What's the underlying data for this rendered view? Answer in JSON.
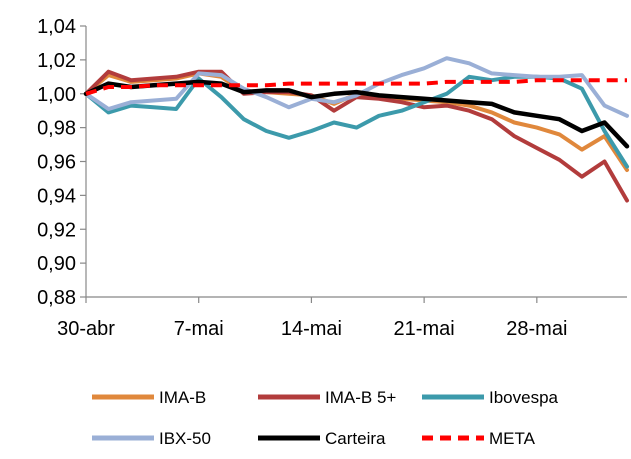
{
  "chart_data": {
    "type": "line",
    "title": "",
    "xlabel": "",
    "ylabel": "",
    "ylim": [
      0.88,
      1.04
    ],
    "yticks": [
      "0,88",
      "0,90",
      "0,92",
      "0,94",
      "0,96",
      "0,98",
      "1,00",
      "1,02",
      "1,04"
    ],
    "xticks": [
      "30-abr",
      "7-mai",
      "14-mai",
      "21-mai",
      "28-mai"
    ],
    "grid": false,
    "legend_position": "bottom",
    "series": [
      {
        "name": "IMA-B",
        "color": "#e0883c",
        "dash": "solid",
        "values": [
          1.0,
          1.011,
          1.007,
          1.008,
          1.009,
          1.012,
          1.01,
          1.001,
          1.001,
          1.0,
          0.999,
          0.994,
          1.0,
          0.998,
          0.997,
          0.996,
          0.995,
          0.993,
          0.989,
          0.983,
          0.98,
          0.976,
          0.967,
          0.975,
          0.955
        ]
      },
      {
        "name": "IMA-B 5+",
        "color": "#b23c3c",
        "dash": "solid",
        "values": [
          1.0,
          1.013,
          1.008,
          1.009,
          1.01,
          1.013,
          1.013,
          1.0,
          1.001,
          1.001,
          0.999,
          0.99,
          0.998,
          0.997,
          0.995,
          0.992,
          0.993,
          0.99,
          0.985,
          0.975,
          0.968,
          0.961,
          0.951,
          0.96,
          0.937
        ]
      },
      {
        "name": "Ibovespa",
        "color": "#3c9aab",
        "dash": "solid",
        "values": [
          1.0,
          0.989,
          0.993,
          0.992,
          0.991,
          1.009,
          0.998,
          0.985,
          0.978,
          0.974,
          0.978,
          0.983,
          0.98,
          0.987,
          0.99,
          0.995,
          1.0,
          1.01,
          1.008,
          1.01,
          1.01,
          1.009,
          1.003,
          0.978,
          0.957
        ]
      },
      {
        "name": "IBX-50",
        "color": "#9aafd6",
        "dash": "solid",
        "values": [
          1.0,
          0.991,
          0.995,
          0.996,
          0.997,
          1.012,
          1.011,
          1.003,
          0.998,
          0.992,
          0.997,
          0.995,
          0.999,
          1.006,
          1.011,
          1.015,
          1.021,
          1.018,
          1.012,
          1.011,
          1.01,
          1.01,
          1.011,
          0.993,
          0.987
        ]
      },
      {
        "name": "Carteira",
        "color": "#000000",
        "dash": "solid",
        "values": [
          1.0,
          1.006,
          1.004,
          1.005,
          1.006,
          1.007,
          1.006,
          1.001,
          1.002,
          1.002,
          0.998,
          1.0,
          1.001,
          0.999,
          0.998,
          0.997,
          0.996,
          0.995,
          0.994,
          0.989,
          0.987,
          0.985,
          0.978,
          0.983,
          0.969
        ]
      },
      {
        "name": "META",
        "color": "#ff0000",
        "dash": "dashed",
        "values": [
          1.0,
          1.004,
          1.004,
          1.005,
          1.005,
          1.005,
          1.005,
          1.005,
          1.005,
          1.006,
          1.006,
          1.006,
          1.006,
          1.006,
          1.006,
          1.006,
          1.007,
          1.007,
          1.007,
          1.007,
          1.008,
          1.008,
          1.008,
          1.008,
          1.008
        ]
      }
    ]
  }
}
